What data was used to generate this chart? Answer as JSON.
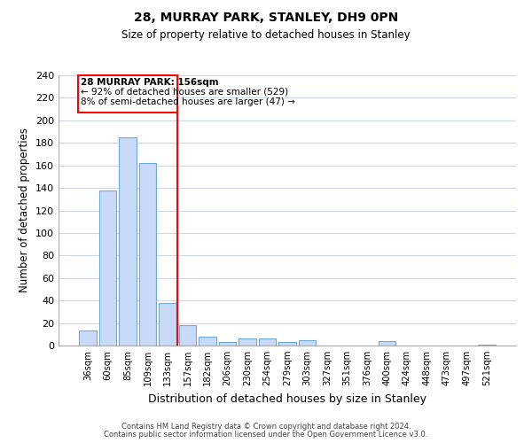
{
  "title": "28, MURRAY PARK, STANLEY, DH9 0PN",
  "subtitle": "Size of property relative to detached houses in Stanley",
  "xlabel": "Distribution of detached houses by size in Stanley",
  "ylabel": "Number of detached properties",
  "bar_labels": [
    "36sqm",
    "60sqm",
    "85sqm",
    "109sqm",
    "133sqm",
    "157sqm",
    "182sqm",
    "206sqm",
    "230sqm",
    "254sqm",
    "279sqm",
    "303sqm",
    "327sqm",
    "351sqm",
    "376sqm",
    "400sqm",
    "424sqm",
    "448sqm",
    "473sqm",
    "497sqm",
    "521sqm"
  ],
  "bar_values": [
    13,
    138,
    185,
    162,
    38,
    18,
    8,
    3,
    6,
    6,
    3,
    5,
    0,
    0,
    0,
    4,
    0,
    0,
    0,
    0,
    1
  ],
  "bar_color": "#c9daf8",
  "bar_edge_color": "#6fa8dc",
  "annotation_title": "28 MURRAY PARK: 156sqm",
  "annotation_line1": "← 92% of detached houses are smaller (529)",
  "annotation_line2": "8% of semi-detached houses are larger (47) →",
  "property_line_index": 5,
  "ylim": [
    0,
    240
  ],
  "yticks": [
    0,
    20,
    40,
    60,
    80,
    100,
    120,
    140,
    160,
    180,
    200,
    220,
    240
  ],
  "footer_line1": "Contains HM Land Registry data © Crown copyright and database right 2024.",
  "footer_line2": "Contains public sector information licensed under the Open Government Licence v3.0.",
  "background_color": "#ffffff",
  "grid_color": "#d0d8e8"
}
